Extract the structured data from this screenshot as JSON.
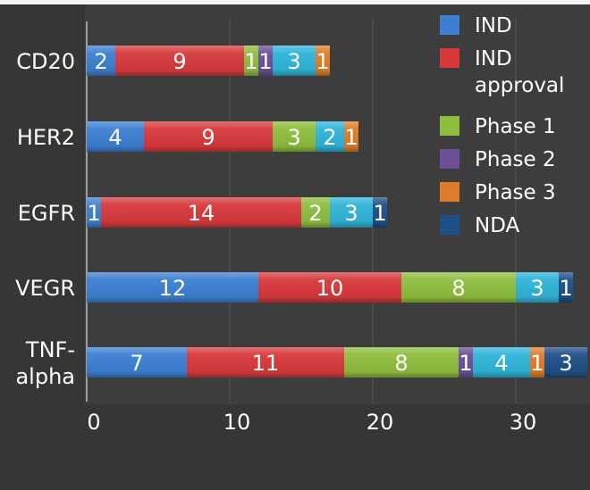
{
  "chart_data": {
    "type": "bar",
    "orientation": "horizontal",
    "stacked": true,
    "categories": [
      "CD20",
      "HER2",
      "EGFR",
      "VEGR",
      "TNF-\nalpha"
    ],
    "series": [
      {
        "name": "IND",
        "color": "#3b80d2",
        "values": [
          2,
          4,
          1,
          12,
          7
        ]
      },
      {
        "name": "IND\napproval",
        "color": "#d8393b",
        "values": [
          9,
          9,
          14,
          10,
          11
        ]
      },
      {
        "name": "Phase 1",
        "color": "#8ebd3d",
        "values": [
          1,
          3,
          2,
          8,
          8
        ]
      },
      {
        "name": "Phase 2",
        "color": "#6b4f97",
        "values": [
          1,
          0,
          0,
          0,
          1
        ]
      },
      {
        "name": "",
        "color": "#2fb4da",
        "values": [
          3,
          2,
          3,
          3,
          4
        ],
        "in_legend": false
      },
      {
        "name": "Phase 3",
        "color": "#e07c29",
        "values": [
          1,
          1,
          0,
          0,
          1
        ]
      },
      {
        "name": "NDA",
        "color": "#1f4f88",
        "values": [
          0,
          0,
          1,
          1,
          3
        ]
      }
    ],
    "xticks": [
      0,
      10,
      20,
      30
    ],
    "xlim": [
      0,
      35
    ],
    "title": "",
    "xlabel": "",
    "ylabel": "",
    "grid": true,
    "legend": "top-right",
    "data_labels": true
  }
}
